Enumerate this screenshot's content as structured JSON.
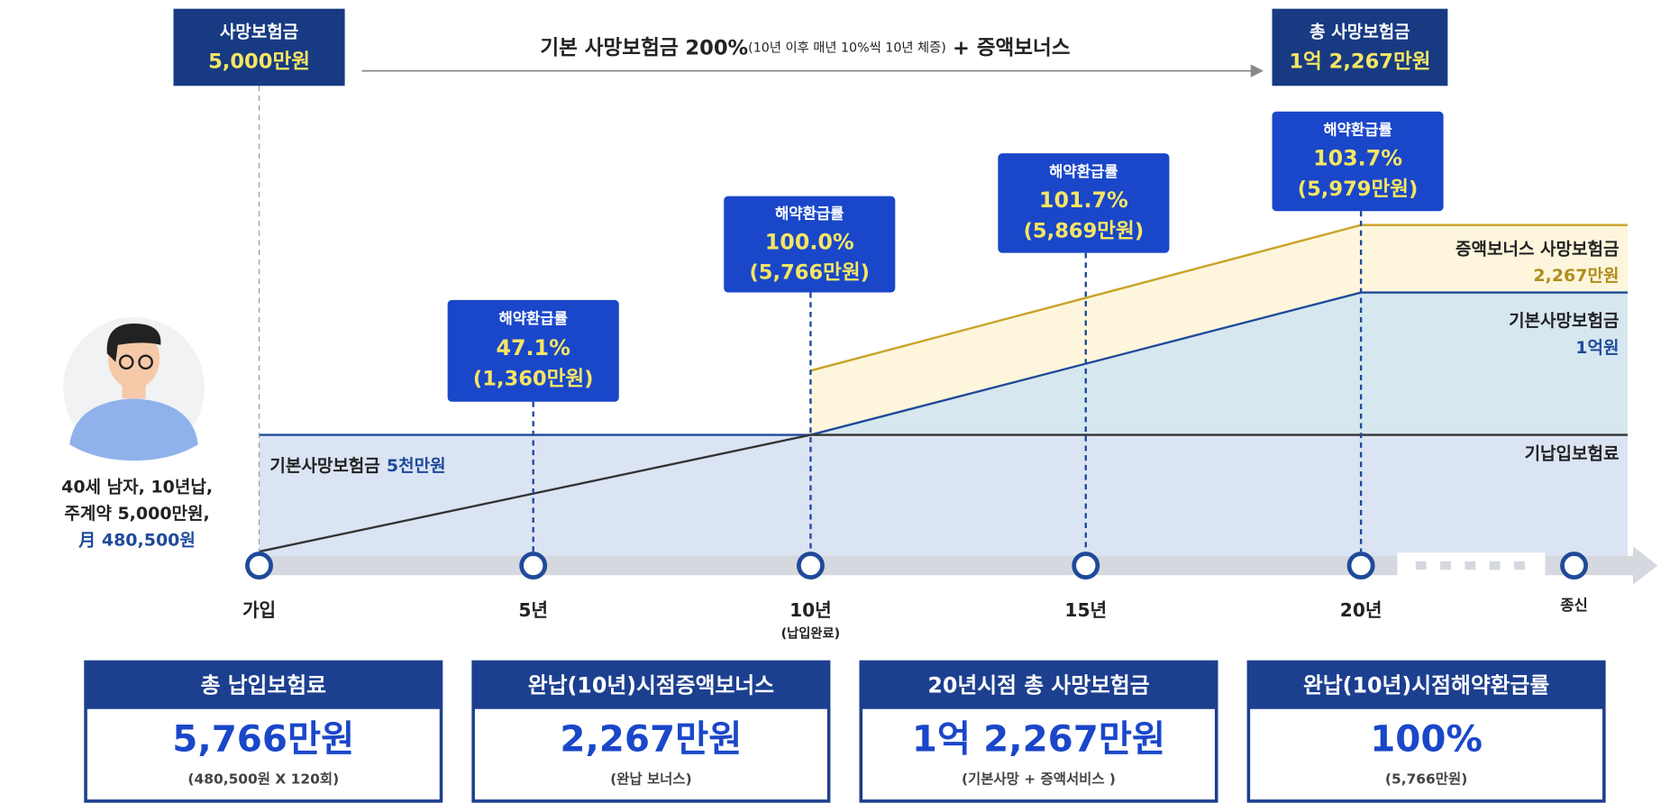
{
  "top": {
    "start_box": {
      "label": "사망보험금",
      "amount": "5,000만원"
    },
    "arrow_text": {
      "main": "기본 사망보험금 200%",
      "detail": "(10년 이후 매년 10%씩 10년 체증)",
      "plus": "+ 증액보너스"
    },
    "end_box": {
      "label": "총 사망보험금",
      "amount": "1억 2,267만원"
    }
  },
  "callouts": [
    {
      "title": "해약환급률",
      "rate": "47.1%",
      "amount": "(1,360만원)"
    },
    {
      "title": "해약환급률",
      "rate": "100.0%",
      "amount": "(5,766만원)"
    },
    {
      "title": "해약환급률",
      "rate": "101.7%",
      "amount": "(5,869만원)"
    },
    {
      "title": "해약환급률",
      "rate": "103.7%",
      "amount": "(5,979만원)"
    }
  ],
  "profile": {
    "line1": "40세 남자, 10년납,",
    "line2": "주계약 5,000만원,",
    "line3": "月 480,500원"
  },
  "area_labels": {
    "base_death": {
      "name": "기본사망보험금",
      "amount": "5천만원"
    },
    "bonus": {
      "name": "증액보너스 사망보험금",
      "amount": "2,267만원"
    },
    "base_death_20": {
      "name": "기본사망보험금",
      "amount": "1억원"
    },
    "paid": "기납입보험료"
  },
  "timeline": {
    "labels": [
      "가입",
      "5년",
      "10년",
      "15년",
      "20년",
      "종신"
    ],
    "note_10": "(납입완료)"
  },
  "cards": [
    {
      "title": "총 납입보험료",
      "value": "5,766만원",
      "note": "(480,500원 X 120회)"
    },
    {
      "title": "완납(10년)시점증액보너스",
      "value": "2,267만원",
      "note": "(완납 보너스)"
    },
    {
      "title": "20년시점 총 사망보험금",
      "value": "1억 2,267만원",
      "note": "(기본사망 + 증액서비스 )"
    },
    {
      "title": "완납(10년)시점해약환급률",
      "value": "100%",
      "note": "(5,766만원)"
    }
  ]
}
